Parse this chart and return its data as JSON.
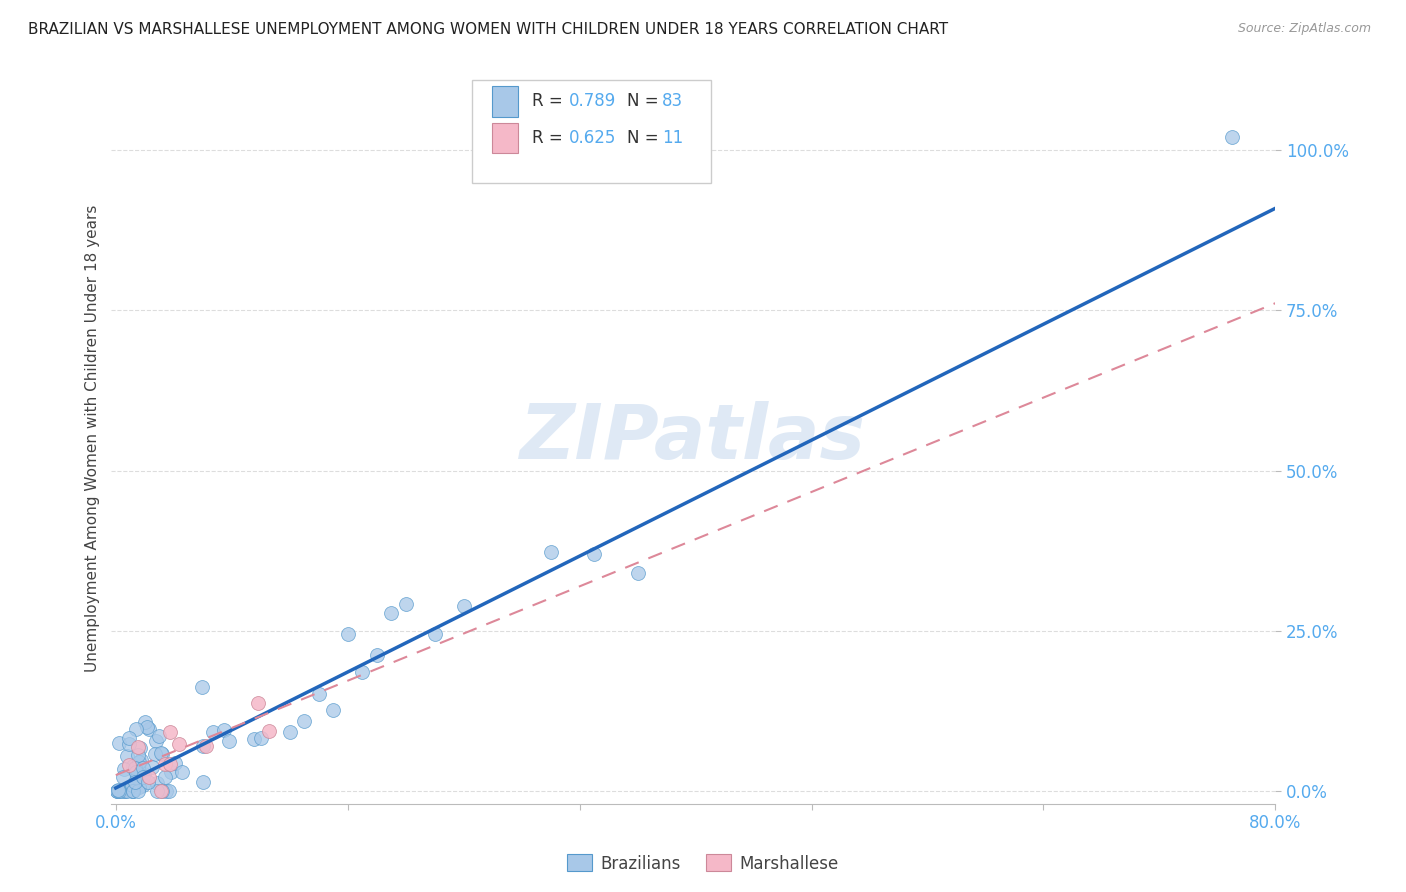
{
  "title": "BRAZILIAN VS MARSHALLESE UNEMPLOYMENT AMONG WOMEN WITH CHILDREN UNDER 18 YEARS CORRELATION CHART",
  "source": "Source: ZipAtlas.com",
  "ylabel": "Unemployment Among Women with Children Under 18 years",
  "xlim": [
    0.0,
    0.8
  ],
  "ylim": [
    -0.02,
    1.12
  ],
  "yticks": [
    0.0,
    0.25,
    0.5,
    0.75,
    1.0
  ],
  "ytick_labels": [
    "0.0%",
    "25.0%",
    "50.0%",
    "75.0%",
    "100.0%"
  ],
  "xtick_vals": [
    0.0,
    0.16,
    0.32,
    0.48,
    0.64,
    0.8
  ],
  "xtick_labels": [
    "0.0%",
    "",
    "",
    "",
    "",
    "80.0%"
  ],
  "R_brazilian": 0.789,
  "N_brazilian": 83,
  "R_marshallese": 0.625,
  "N_marshallese": 11,
  "watermark": "ZIPatlas",
  "background_color": "#ffffff",
  "scatter_color_brazilian": "#a8c8e8",
  "scatter_edge_brazilian": "#5599cc",
  "scatter_color_marshallese": "#f5b8c8",
  "scatter_edge_marshallese": "#cc8899",
  "line_color_brazilian": "#2266bb",
  "line_color_marshallese": "#dd8899",
  "tick_color": "#55aaee",
  "grid_color": "#dddddd",
  "legend_text_black": "#333333",
  "legend_text_blue": "#55aaee",
  "brazil_line_slope": 1.13,
  "brazil_line_intercept": 0.005,
  "marsh_line_slope": 0.92,
  "marsh_line_intercept": 0.025
}
